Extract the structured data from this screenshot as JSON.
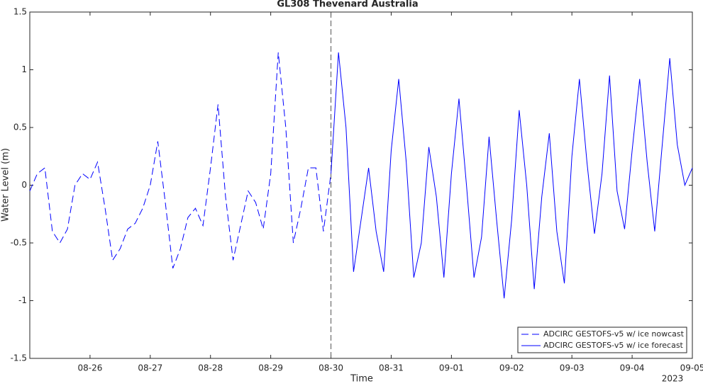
{
  "chart_data": {
    "type": "line",
    "title": "GL308 Thevenard Australia",
    "xlabel": "Time",
    "ylabel": "Water Level (m)",
    "x_secondary_label": "2023",
    "xlim": [
      "2023-08-25",
      "2023-09-05"
    ],
    "xticks": [
      {
        "value": "2023-08-26",
        "label": "08-26"
      },
      {
        "value": "2023-08-27",
        "label": "08-27"
      },
      {
        "value": "2023-08-28",
        "label": "08-28"
      },
      {
        "value": "2023-08-29",
        "label": "08-29"
      },
      {
        "value": "2023-08-30",
        "label": "08-30"
      },
      {
        "value": "2023-08-31",
        "label": "08-31"
      },
      {
        "value": "2023-09-01",
        "label": "09-01"
      },
      {
        "value": "2023-09-02",
        "label": "09-02"
      },
      {
        "value": "2023-09-03",
        "label": "09-03"
      },
      {
        "value": "2023-09-04",
        "label": "09-04"
      },
      {
        "value": "2023-09-05",
        "label": "09-05"
      }
    ],
    "ylim": [
      -1.5,
      1.5
    ],
    "yticks": [
      -1.5,
      -1,
      -0.5,
      0,
      0.5,
      1,
      1.5
    ],
    "vlines": [
      "2023-08-30"
    ],
    "legend": "lower right",
    "grid": false,
    "series": [
      {
        "name": "ADCIRC GESTOFS-v5 w/ ice nowcast",
        "color": "#0000ff",
        "dash": "10,5",
        "x": [
          "2023-08-25T00:00",
          "2023-08-25T03:00",
          "2023-08-25T06:00",
          "2023-08-25T09:00",
          "2023-08-25T12:00",
          "2023-08-25T15:00",
          "2023-08-25T18:00",
          "2023-08-25T21:00",
          "2023-08-26T00:00",
          "2023-08-26T03:00",
          "2023-08-26T06:00",
          "2023-08-26T09:00",
          "2023-08-26T12:00",
          "2023-08-26T15:00",
          "2023-08-26T18:00",
          "2023-08-26T21:00",
          "2023-08-27T00:00",
          "2023-08-27T03:00",
          "2023-08-27T06:00",
          "2023-08-27T09:00",
          "2023-08-27T12:00",
          "2023-08-27T15:00",
          "2023-08-27T18:00",
          "2023-08-27T21:00",
          "2023-08-28T00:00",
          "2023-08-28T03:00",
          "2023-08-28T06:00",
          "2023-08-28T09:00",
          "2023-08-28T12:00",
          "2023-08-28T15:00",
          "2023-08-28T18:00",
          "2023-08-28T21:00",
          "2023-08-29T00:00",
          "2023-08-29T03:00",
          "2023-08-29T06:00",
          "2023-08-29T09:00",
          "2023-08-29T12:00",
          "2023-08-29T15:00",
          "2023-08-29T18:00",
          "2023-08-29T21:00",
          "2023-08-30T00:00"
        ],
        "values": [
          -0.05,
          0.1,
          0.15,
          -0.4,
          -0.5,
          -0.38,
          0.0,
          0.1,
          0.05,
          0.2,
          -0.2,
          -0.65,
          -0.55,
          -0.38,
          -0.33,
          -0.2,
          0.0,
          0.38,
          -0.15,
          -0.72,
          -0.55,
          -0.28,
          -0.2,
          -0.35,
          0.15,
          0.7,
          -0.1,
          -0.65,
          -0.35,
          -0.05,
          -0.15,
          -0.38,
          0.1,
          1.15,
          0.5,
          -0.5,
          -0.2,
          0.15,
          0.15,
          -0.4,
          0.1
        ]
      },
      {
        "name": "ADCIRC GESTOFS-v5 w/ ice forecast",
        "color": "#0000ff",
        "dash": "none",
        "x": [
          "2023-08-30T00:00",
          "2023-08-30T03:00",
          "2023-08-30T06:00",
          "2023-08-30T09:00",
          "2023-08-30T12:00",
          "2023-08-30T15:00",
          "2023-08-30T18:00",
          "2023-08-30T21:00",
          "2023-08-31T00:00",
          "2023-08-31T03:00",
          "2023-08-31T06:00",
          "2023-08-31T09:00",
          "2023-08-31T12:00",
          "2023-08-31T15:00",
          "2023-08-31T18:00",
          "2023-08-31T21:00",
          "2023-09-01T00:00",
          "2023-09-01T03:00",
          "2023-09-01T06:00",
          "2023-09-01T09:00",
          "2023-09-01T12:00",
          "2023-09-01T15:00",
          "2023-09-01T18:00",
          "2023-09-01T21:00",
          "2023-09-02T00:00",
          "2023-09-02T03:00",
          "2023-09-02T06:00",
          "2023-09-02T09:00",
          "2023-09-02T12:00",
          "2023-09-02T15:00",
          "2023-09-02T18:00",
          "2023-09-02T21:00",
          "2023-09-03T00:00",
          "2023-09-03T03:00",
          "2023-09-03T06:00",
          "2023-09-03T09:00",
          "2023-09-03T12:00",
          "2023-09-03T15:00",
          "2023-09-03T18:00",
          "2023-09-03T21:00",
          "2023-09-04T00:00",
          "2023-09-04T03:00",
          "2023-09-04T06:00",
          "2023-09-04T09:00",
          "2023-09-04T12:00",
          "2023-09-04T15:00",
          "2023-09-04T18:00",
          "2023-09-04T21:00",
          "2023-09-05T00:00"
        ],
        "values": [
          0.1,
          1.15,
          0.5,
          -0.75,
          -0.3,
          0.15,
          -0.4,
          -0.75,
          0.3,
          0.92,
          0.2,
          -0.8,
          -0.5,
          0.33,
          -0.1,
          -0.8,
          0.1,
          0.75,
          0.0,
          -0.8,
          -0.45,
          0.42,
          -0.3,
          -0.98,
          -0.3,
          0.65,
          0.0,
          -0.9,
          -0.1,
          0.45,
          -0.4,
          -0.85,
          0.25,
          0.92,
          0.2,
          -0.42,
          0.1,
          0.95,
          -0.05,
          -0.38,
          0.3,
          0.92,
          0.2,
          -0.4,
          0.35,
          1.1,
          0.35,
          0.0,
          0.15
        ]
      }
    ]
  }
}
